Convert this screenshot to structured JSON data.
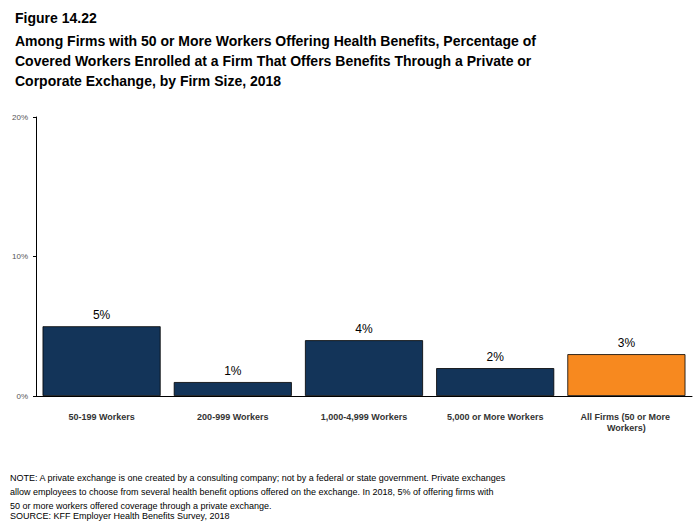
{
  "chart_data": {
    "type": "bar",
    "figure_label": "Figure 14.22",
    "title": "Among Firms with 50 or More Workers Offering Health Benefits, Percentage of Covered Workers Enrolled at a Firm That Offers Benefits Through a Private or Corporate Exchange, by Firm Size, 2018",
    "categories": [
      "50-199 Workers",
      "200-999 Workers",
      "1,000-4,999 Workers",
      "5,000 or More Workers",
      "All Firms (50 or More Workers)"
    ],
    "values": [
      5,
      1,
      4,
      2,
      3
    ],
    "value_labels": [
      "5%",
      "1%",
      "4%",
      "2%",
      "3%"
    ],
    "colors": [
      "#133459",
      "#133459",
      "#133459",
      "#133459",
      "#f7891f"
    ],
    "data_labels": true,
    "ylim": [
      0,
      20
    ],
    "yticks": [
      {
        "value": 0,
        "label": "0%"
      },
      {
        "value": 10,
        "label": "10%"
      },
      {
        "value": 20,
        "label": "20%"
      }
    ],
    "grid": false,
    "note": "NOTE: A private exchange is one created by a consulting company; not by a federal or state government. Private exchanges allow employees to choose from several health benefit options offered on the exchange. In 2018, 5% of offering firms with 50 or more workers offered coverage through a private exchange.",
    "source": "SOURCE: KFF Employer Health Benefits Survey, 2018"
  }
}
